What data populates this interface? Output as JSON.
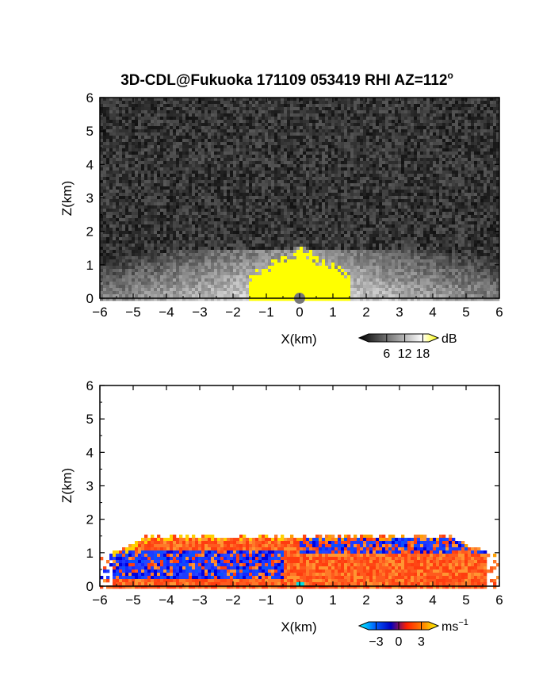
{
  "page": {
    "title": "3D-CDL@Fukuoka 171109 053419 RHI AZ=112",
    "title_superscript": "o"
  },
  "chart_data": [
    {
      "type": "heatmap",
      "name": "reflectivity",
      "title": "3D-CDL@Fukuoka 171109 053419 RHI AZ=112",
      "xlabel": "X(km)",
      "ylabel": "Z(km)",
      "xlim": [
        -6,
        6
      ],
      "ylim": [
        0,
        6
      ],
      "xticks": [
        -6,
        -5,
        -4,
        -3,
        -2,
        -1,
        0,
        1,
        2,
        3,
        4,
        5,
        6
      ],
      "yticks": [
        0,
        1,
        2,
        3,
        4,
        5,
        6
      ],
      "colorbar": {
        "unit": "dB",
        "ticks": [
          "6",
          "12",
          "18"
        ],
        "range": [
          0,
          20
        ],
        "colors": [
          "#000000",
          "#404040",
          "#808080",
          "#bfbfbf",
          "#ffffff",
          "#ffff00"
        ]
      },
      "colors": {
        "background": "#2a2a2a",
        "noise_low": "#0e0e0e",
        "noise_high": "#6a6a6a",
        "saturation": "#ffff00"
      },
      "description_fields": {
        "boundary_layer_top_km": 1.5,
        "saturated_region_x_km": [
          -1.5,
          1.5
        ]
      }
    },
    {
      "type": "heatmap",
      "name": "doppler_velocity",
      "xlabel": "X(km)",
      "ylabel": "Z(km)",
      "xlim": [
        -6,
        6
      ],
      "ylim": [
        0,
        6
      ],
      "xticks": [
        -6,
        -5,
        -4,
        -3,
        -2,
        -1,
        0,
        1,
        2,
        3,
        4,
        5,
        6
      ],
      "yticks": [
        0,
        1,
        2,
        3,
        4,
        5,
        6
      ],
      "colorbar": {
        "unit": "ms",
        "unit_superscript": "−1",
        "ticks": [
          "−3",
          "0",
          "3"
        ],
        "range": [
          -4,
          4
        ],
        "colors": [
          "#00ffff",
          "#0060ff",
          "#0000c0",
          "#ff2000",
          "#ff8000",
          "#ffff00"
        ]
      },
      "colors": {
        "background": "#ffffff",
        "positive": "#ff5a1e",
        "negative": "#1e3cff"
      },
      "description_fields": {
        "echo_top_km": 1.5
      }
    }
  ]
}
